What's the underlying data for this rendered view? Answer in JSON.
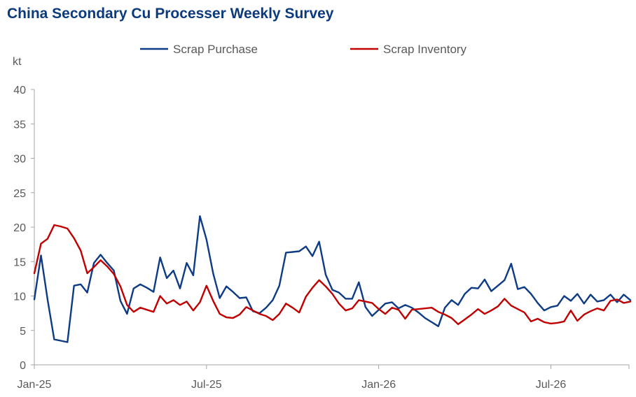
{
  "chart_data": {
    "type": "line",
    "title": "China Secondary Cu Processer Weekly Survey",
    "y_unit": "kt",
    "ylim": [
      0,
      40
    ],
    "y_ticks": [
      0,
      5,
      10,
      15,
      20,
      25,
      30,
      35,
      40
    ],
    "x_ticks": [
      {
        "label": "Jan-25",
        "x": 0
      },
      {
        "label": "Jul-25",
        "x": 26
      },
      {
        "label": "Jan-26",
        "x": 52
      },
      {
        "label": "Jul-26",
        "x": 78
      }
    ],
    "grid": false,
    "legend_position": "top",
    "series": [
      {
        "name": "Scrap Purchase",
        "color": "#0d3b85",
        "values": [
          9.5,
          15.9,
          9.5,
          3.7,
          3.5,
          3.3,
          11.5,
          11.7,
          10.5,
          14.8,
          16.0,
          14.8,
          13.7,
          9.3,
          7.4,
          11.1,
          11.7,
          11.2,
          10.6,
          15.6,
          12.6,
          13.7,
          11.1,
          14.8,
          13.0,
          21.6,
          18.2,
          13.3,
          9.7,
          11.4,
          10.6,
          9.7,
          9.8,
          7.8,
          7.5,
          8.3,
          9.4,
          11.5,
          16.3,
          16.4,
          16.5,
          17.2,
          15.8,
          17.9,
          13.1,
          10.9,
          10.5,
          9.6,
          9.6,
          12.0,
          8.4,
          7.1,
          8.0,
          8.9,
          9.1,
          8.2,
          8.7,
          8.3,
          7.6,
          6.8,
          6.2,
          5.6,
          8.3,
          9.4,
          8.7,
          10.3,
          11.2,
          11.1,
          12.4,
          10.7,
          11.5,
          12.3,
          14.7,
          11.0,
          11.3,
          10.3,
          9.0,
          7.9,
          8.4,
          8.6,
          10.0,
          9.3,
          10.3,
          8.9,
          10.2,
          9.2,
          9.4,
          10.2,
          9.1,
          10.2,
          9.4
        ]
      },
      {
        "name": "Scrap Inventory",
        "color": "#c00000",
        "values": [
          13.3,
          17.6,
          18.3,
          20.3,
          20.1,
          19.8,
          18.4,
          16.6,
          13.3,
          14.2,
          15.2,
          14.3,
          13.2,
          11.4,
          8.7,
          7.7,
          8.3,
          8.0,
          7.7,
          10.0,
          8.9,
          9.4,
          8.7,
          9.2,
          7.9,
          9.1,
          11.5,
          9.3,
          7.4,
          6.9,
          6.8,
          7.3,
          8.4,
          7.9,
          7.4,
          7.1,
          6.5,
          7.4,
          8.9,
          8.3,
          7.6,
          9.9,
          11.2,
          12.3,
          11.4,
          10.3,
          8.9,
          7.9,
          8.2,
          9.4,
          9.2,
          9.0,
          8.1,
          7.4,
          8.3,
          8.0,
          6.7,
          8.0,
          8.1,
          8.2,
          8.3,
          7.7,
          7.3,
          6.8,
          5.9,
          6.6,
          7.3,
          8.1,
          7.4,
          7.9,
          8.5,
          9.6,
          8.6,
          8.1,
          7.6,
          6.3,
          6.7,
          6.2,
          6.0,
          6.1,
          6.3,
          7.9,
          6.4,
          7.3,
          7.8,
          8.2,
          7.9,
          9.3,
          9.5,
          9.0,
          9.2
        ]
      }
    ]
  }
}
